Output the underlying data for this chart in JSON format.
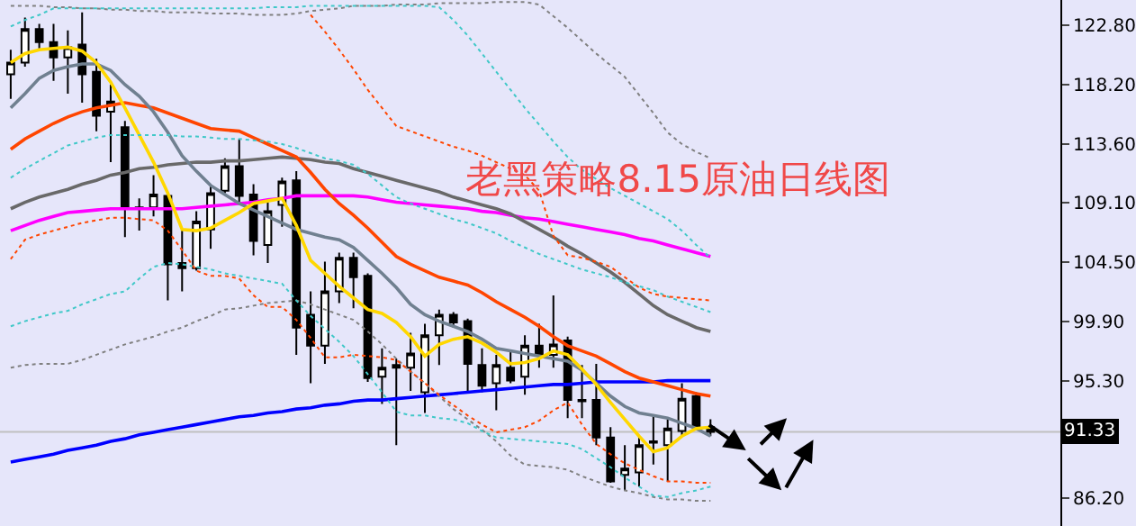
{
  "chart_data": {
    "type": "candlestick",
    "title": "老黑策略8.15原油日线图",
    "categories": [
      null,
      null,
      null,
      null,
      null,
      null,
      null,
      null,
      null,
      null,
      null,
      null,
      null,
      null,
      null,
      null,
      null,
      null,
      null,
      null,
      null,
      null,
      null,
      null,
      null,
      null,
      null,
      null,
      null,
      null,
      null,
      null,
      null,
      null,
      null,
      null,
      null,
      null,
      null,
      null,
      null,
      null,
      null,
      null,
      null,
      null,
      null,
      null,
      null,
      null
    ],
    "ohlc": [
      [
        119.0,
        120.9,
        117.1,
        119.9
      ],
      [
        119.9,
        123.4,
        119.6,
        122.5
      ],
      [
        122.5,
        122.9,
        121.0,
        121.5
      ],
      [
        121.5,
        122.9,
        118.5,
        120.3
      ],
      [
        120.3,
        122.4,
        117.5,
        121.1
      ],
      [
        121.3,
        123.8,
        116.8,
        119.0
      ],
      [
        119.2,
        120.2,
        114.6,
        115.8
      ],
      [
        116.1,
        118.2,
        112.2,
        116.9
      ],
      [
        114.9,
        115.4,
        106.4,
        108.6
      ],
      [
        108.7,
        109.4,
        106.9,
        108.6
      ],
      [
        108.7,
        111.2,
        108.0,
        109.7
      ],
      [
        109.6,
        109.8,
        101.5,
        104.3
      ],
      [
        104.4,
        106.9,
        102.2,
        104.0
      ],
      [
        104.0,
        108.4,
        103.8,
        107.6
      ],
      [
        107.0,
        110.4,
        105.5,
        109.8
      ],
      [
        110.0,
        112.5,
        109.8,
        111.9
      ],
      [
        111.9,
        114.0,
        109.0,
        109.6
      ],
      [
        109.7,
        110.5,
        105.0,
        106.1
      ],
      [
        105.8,
        109.1,
        104.4,
        108.4
      ],
      [
        108.9,
        111.0,
        107.2,
        110.7
      ],
      [
        110.8,
        111.5,
        97.3,
        99.4
      ],
      [
        100.4,
        102.2,
        95.1,
        98.0
      ],
      [
        98.0,
        104.5,
        96.6,
        102.2
      ],
      [
        102.2,
        105.2,
        101.3,
        104.8
      ],
      [
        104.8,
        105.2,
        100.9,
        103.3
      ],
      [
        103.4,
        103.6,
        95.2,
        95.5
      ],
      [
        95.6,
        97.8,
        93.5,
        96.3
      ],
      [
        96.5,
        97.0,
        90.3,
        96.3
      ],
      [
        96.3,
        99.0,
        94.5,
        97.4
      ],
      [
        94.4,
        99.7,
        92.8,
        98.8
      ],
      [
        98.8,
        100.8,
        96.5,
        100.4
      ],
      [
        100.4,
        100.6,
        99.4,
        99.8
      ],
      [
        99.9,
        100.1,
        94.5,
        96.6
      ],
      [
        96.5,
        97.8,
        94.4,
        94.9
      ],
      [
        95.1,
        97.3,
        93.0,
        96.5
      ],
      [
        96.3,
        97.6,
        95.1,
        95.3
      ],
      [
        95.6,
        98.8,
        94.2,
        98.0
      ],
      [
        98.0,
        99.7,
        96.3,
        97.3
      ],
      [
        97.3,
        101.9,
        96.3,
        98.1
      ],
      [
        98.4,
        98.7,
        92.4,
        93.8
      ],
      [
        93.8,
        96.5,
        92.4,
        93.7
      ],
      [
        93.8,
        96.6,
        90.3,
        90.9
      ],
      [
        90.9,
        91.7,
        87.4,
        87.5
      ],
      [
        88.0,
        90.3,
        86.8,
        88.5
      ],
      [
        88.2,
        90.9,
        87.1,
        90.3
      ],
      [
        90.5,
        92.6,
        88.8,
        90.6
      ],
      [
        90.3,
        92.3,
        87.5,
        91.6
      ],
      [
        91.4,
        95.1,
        91.0,
        93.9
      ],
      [
        94.1,
        94.4,
        91.6,
        91.7
      ],
      [
        91.7,
        92.3,
        91.0,
        91.33
      ]
    ],
    "series": [
      {
        "type": "line",
        "color": "#808080",
        "line_style": "dotted",
        "values": [
          124.3,
          124.3,
          124.3,
          124.2,
          124.2,
          124.1,
          124.1,
          124.0,
          124.0,
          123.9,
          123.9,
          123.8,
          123.8,
          123.8,
          123.7,
          123.7,
          123.7,
          123.6,
          123.6,
          123.6,
          123.7,
          123.9,
          124.0,
          124.1,
          124.3,
          124.3,
          124.3,
          124.4,
          124.4,
          124.4,
          124.5,
          124.5,
          124.5,
          124.5,
          124.6,
          124.6,
          124.6,
          124.4,
          123.5,
          122.6,
          121.6,
          120.6,
          119.7,
          118.8,
          117.4,
          116.0,
          114.5,
          113.6,
          113.0,
          112.5
        ]
      },
      {
        "type": "line",
        "color": "#808080",
        "line_style": "dotted",
        "values": [
          96.3,
          96.5,
          96.6,
          96.6,
          96.6,
          96.9,
          97.3,
          97.7,
          98.1,
          98.4,
          98.7,
          99.1,
          99.4,
          99.9,
          100.3,
          100.8,
          100.9,
          101.1,
          101.3,
          101.4,
          101.5,
          101.2,
          100.8,
          100.4,
          100.0,
          99.1,
          98.1,
          97.0,
          96.0,
          95.1,
          94.1,
          93.1,
          92.3,
          91.5,
          90.6,
          89.5,
          88.8,
          88.7,
          88.6,
          88.4,
          87.9,
          87.5,
          87.1,
          86.8,
          86.6,
          86.3,
          86.1,
          86.1,
          86.0,
          86.0
        ]
      },
      {
        "type": "line",
        "color": "#40c8c8",
        "line_style": "dotted",
        "values": [
          122.7,
          123.2,
          123.6,
          124.1,
          124.1,
          124.1,
          124.1,
          124.1,
          124.1,
          124.1,
          124.1,
          124.1,
          124.1,
          124.1,
          124.1,
          124.1,
          124.1,
          124.1,
          124.2,
          124.2,
          124.2,
          124.3,
          124.3,
          124.3,
          124.3,
          124.3,
          124.3,
          124.3,
          124.3,
          124.3,
          124.2,
          123.2,
          122.0,
          120.6,
          119.2,
          117.8,
          116.4,
          115.1,
          113.8,
          112.6,
          111.6,
          110.9,
          110.2,
          109.6,
          109.0,
          108.4,
          107.8,
          106.9,
          105.8,
          104.8
        ]
      },
      {
        "type": "line",
        "color": "#40c8c8",
        "line_style": "dotted",
        "values": [
          111.0,
          111.7,
          112.3,
          112.9,
          113.5,
          113.8,
          114.1,
          114.3,
          114.3,
          114.3,
          114.3,
          114.3,
          114.2,
          114.2,
          114.1,
          114.0,
          114.0,
          113.9,
          113.8,
          113.6,
          113.3,
          112.9,
          112.5,
          112.3,
          112.0,
          111.3,
          110.4,
          109.5,
          109.0,
          108.6,
          108.2,
          107.8,
          107.5,
          107.1,
          106.7,
          106.1,
          105.6,
          105.1,
          104.7,
          104.3,
          103.9,
          103.6,
          103.3,
          102.9,
          102.6,
          102.3,
          101.8,
          101.4,
          101.0,
          100.6
        ]
      },
      {
        "type": "line",
        "color": "#40c8c8",
        "line_style": "dotted",
        "values": [
          99.5,
          99.9,
          100.2,
          100.5,
          100.7,
          101.2,
          101.6,
          102.0,
          102.2,
          103.2,
          104.1,
          104.4,
          104.3,
          104.1,
          103.9,
          103.6,
          103.4,
          103.2,
          103.0,
          102.8,
          101.5,
          100.3,
          99.3,
          98.3,
          97.2,
          95.8,
          94.4,
          92.9,
          92.6,
          92.6,
          92.4,
          92.3,
          92.0,
          91.4,
          90.9,
          90.8,
          90.7,
          90.6,
          90.5,
          90.4,
          90.0,
          89.3,
          88.6,
          87.8,
          87.1,
          86.4,
          86.3,
          86.6,
          86.8,
          87.1
        ]
      },
      {
        "type": "line",
        "color": "#ff4500",
        "line_style": "dotted",
        "values": [
          null,
          null,
          null,
          null,
          null,
          null,
          null,
          null,
          null,
          null,
          null,
          null,
          null,
          null,
          null,
          null,
          null,
          null,
          null,
          null,
          null,
          123.6,
          122.3,
          120.9,
          119.4,
          117.8,
          116.4,
          115.0,
          114.6,
          114.2,
          113.8,
          113.4,
          113.1,
          112.7,
          112.2,
          111.7,
          111.2,
          110.0,
          106.5,
          105.0,
          104.8,
          104.5,
          104.1,
          103.3,
          102.5,
          102.0,
          101.8,
          101.7,
          101.6,
          101.5
        ]
      },
      {
        "type": "line",
        "color": "#ff4500",
        "line_style": "dotted",
        "values": [
          104.7,
          106.2,
          106.6,
          106.9,
          107.2,
          107.5,
          107.7,
          107.9,
          107.9,
          107.8,
          107.7,
          106.9,
          105.4,
          103.8,
          103.4,
          103.4,
          103.2,
          101.9,
          101.0,
          101.0,
          100.0,
          98.6,
          97.1,
          97.1,
          97.3,
          97.2,
          97.1,
          96.9,
          96.0,
          95.1,
          94.2,
          93.4,
          92.6,
          91.9,
          91.3,
          91.5,
          91.7,
          92.2,
          93.0,
          93.6,
          91.9,
          90.4,
          89.6,
          88.9,
          88.4,
          87.9,
          87.5,
          87.5,
          87.4,
          87.4
        ]
      },
      {
        "type": "line",
        "color": "#0000ff",
        "line_style": "solid",
        "values": [
          89.0,
          89.2,
          89.4,
          89.6,
          89.9,
          90.1,
          90.3,
          90.6,
          90.8,
          91.1,
          91.3,
          91.5,
          91.7,
          91.9,
          92.1,
          92.3,
          92.5,
          92.6,
          92.8,
          92.9,
          93.1,
          93.2,
          93.4,
          93.5,
          93.7,
          93.8,
          93.8,
          93.9,
          94.0,
          94.1,
          94.2,
          94.3,
          94.4,
          94.5,
          94.6,
          94.7,
          94.8,
          94.9,
          95.0,
          95.0,
          95.1,
          95.2,
          95.2,
          95.2,
          95.2,
          95.2,
          95.3,
          95.3,
          95.3,
          95.3
        ]
      },
      {
        "type": "line",
        "color": "#ff00ff",
        "line_style": "solid",
        "values": [
          106.9,
          107.3,
          107.7,
          108.0,
          108.3,
          108.4,
          108.5,
          108.6,
          108.6,
          108.6,
          108.6,
          108.6,
          108.6,
          108.7,
          108.8,
          108.9,
          109.0,
          109.1,
          109.3,
          109.4,
          109.6,
          109.6,
          109.6,
          109.6,
          109.6,
          109.5,
          109.3,
          109.1,
          109.0,
          108.9,
          108.8,
          108.7,
          108.6,
          108.4,
          108.3,
          108.1,
          107.9,
          107.8,
          107.6,
          107.4,
          107.2,
          107.0,
          106.8,
          106.6,
          106.3,
          106.1,
          105.8,
          105.5,
          105.2,
          104.9
        ]
      },
      {
        "type": "line",
        "color": "#696969",
        "line_style": "solid",
        "values": [
          108.6,
          109.1,
          109.5,
          109.8,
          110.1,
          110.5,
          110.8,
          111.2,
          111.4,
          111.7,
          111.8,
          112.0,
          112.1,
          112.2,
          112.2,
          112.3,
          112.3,
          112.4,
          112.5,
          112.6,
          112.5,
          112.4,
          112.2,
          112.1,
          111.7,
          111.4,
          111.1,
          110.8,
          110.5,
          110.2,
          109.9,
          109.5,
          109.2,
          108.9,
          108.6,
          108.2,
          107.6,
          107.0,
          106.4,
          105.7,
          105.1,
          104.4,
          103.7,
          102.9,
          102.0,
          101.1,
          100.4,
          99.9,
          99.4,
          99.1
        ]
      },
      {
        "type": "line",
        "color": "#ff4500",
        "line_style": "solid",
        "values": [
          113.2,
          114.0,
          114.6,
          115.2,
          115.7,
          116.1,
          116.4,
          116.6,
          116.8,
          116.6,
          116.4,
          116.0,
          115.6,
          115.2,
          114.8,
          114.7,
          114.6,
          114.1,
          113.6,
          113.1,
          112.6,
          111.4,
          110.1,
          109.0,
          108.1,
          107.1,
          106.0,
          104.9,
          104.3,
          103.8,
          103.3,
          103.0,
          102.7,
          102.1,
          101.4,
          100.8,
          100.2,
          99.5,
          98.7,
          98.0,
          97.6,
          97.2,
          96.6,
          96.0,
          95.5,
          95.2,
          94.9,
          94.6,
          94.3,
          94.1
        ]
      },
      {
        "type": "line",
        "color": "#708090",
        "line_style": "solid",
        "values": [
          116.4,
          117.5,
          118.7,
          119.3,
          119.6,
          119.8,
          119.8,
          119.3,
          118.2,
          117.3,
          116.1,
          114.5,
          112.7,
          111.5,
          110.4,
          109.7,
          109.0,
          108.5,
          108.0,
          107.5,
          107.0,
          106.7,
          106.4,
          106.2,
          105.6,
          104.6,
          103.6,
          102.5,
          101.2,
          100.4,
          99.9,
          99.5,
          99.1,
          98.5,
          97.8,
          97.6,
          97.4,
          97.2,
          97.0,
          96.8,
          96.1,
          95.1,
          94.1,
          93.3,
          92.8,
          92.6,
          92.4,
          92.0,
          91.6,
          91.0
        ]
      },
      {
        "type": "line",
        "color": "#ffd700",
        "line_style": "solid",
        "values": [
          119.9,
          120.6,
          120.9,
          121.0,
          121.1,
          120.8,
          119.9,
          118.4,
          116.4,
          114.3,
          112.2,
          109.8,
          107.0,
          106.9,
          107.1,
          107.7,
          108.3,
          109.0,
          109.2,
          109.4,
          107.3,
          104.6,
          103.6,
          102.6,
          101.7,
          100.8,
          100.5,
          99.8,
          98.7,
          97.2,
          98.1,
          98.5,
          98.7,
          98.2,
          97.5,
          96.6,
          96.7,
          97.0,
          97.6,
          97.3,
          96.2,
          95.0,
          93.6,
          92.3,
          91.0,
          89.8,
          90.1,
          91.0,
          91.6,
          91.7
        ]
      }
    ],
    "ylim": [
      84.05,
      124.75
    ],
    "yticks": [
      {
        "value": 86.2,
        "label": "86.20"
      },
      {
        "value": 95.3,
        "label": "95.30"
      },
      {
        "value": 99.9,
        "label": "99.90"
      },
      {
        "value": 104.5,
        "label": "104.50"
      },
      {
        "value": 109.1,
        "label": "109.10"
      },
      {
        "value": 113.6,
        "label": "113.60"
      },
      {
        "value": 118.2,
        "label": "118.20"
      },
      {
        "value": 122.8,
        "label": "122.80"
      }
    ],
    "tick_labels": "y",
    "ref_lines": [
      {
        "axis": "y",
        "value": 91.33,
        "label": "91.33",
        "color": "#c0c0c0"
      }
    ]
  }
}
